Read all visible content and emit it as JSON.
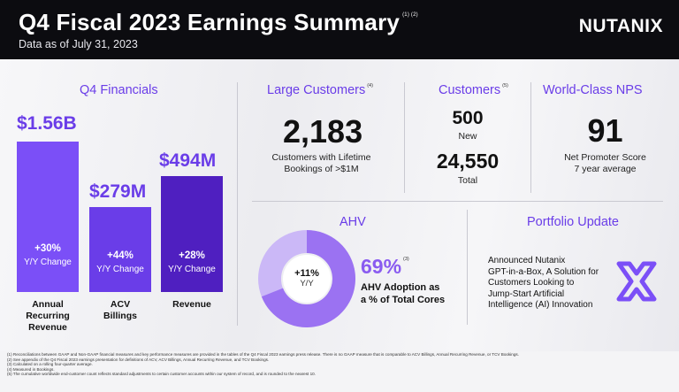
{
  "header": {
    "title": "Q4 Fiscal 2023 Earnings Summary",
    "title_note": "(1) (2)",
    "subtitle": "Data as of July 31, 2023",
    "logo": "NUTANIX"
  },
  "financials": {
    "title": "Q4 Financials",
    "bars": [
      {
        "value": "$1.56B",
        "change": "+30%",
        "change_label": "Y/Y Change",
        "label_lines": [
          "Annual",
          "Recurring",
          "Revenue"
        ],
        "color": "#7b4ff7"
      },
      {
        "value": "$279M",
        "change": "+44%",
        "change_label": "Y/Y Change",
        "label_lines": [
          "ACV",
          "Billings"
        ],
        "color": "#6a3de8"
      },
      {
        "value": "$494M",
        "change": "+28%",
        "change_label": "Y/Y Change",
        "label_lines": [
          "Revenue"
        ],
        "color": "#4f1fc0"
      }
    ]
  },
  "large_customers": {
    "title": "Large Customers",
    "title_note": "(4)",
    "number": "2,183",
    "caption_lines": [
      "Customers with Lifetime",
      "Bookings of >$1M"
    ]
  },
  "customers": {
    "title": "Customers",
    "title_note": "(5)",
    "new_number": "500",
    "new_label": "New",
    "total_number": "24,550",
    "total_label": "Total"
  },
  "nps": {
    "title": "World-Class NPS",
    "number": "91",
    "caption_lines": [
      "Net Promoter Score",
      "7 year average"
    ]
  },
  "ahv": {
    "title": "AHV",
    "donut_change": "+11%",
    "donut_label": "Y/Y",
    "percent": "69%",
    "percent_note": "(3)",
    "adoption_fraction": 0.69,
    "caption_lines": [
      "AHV Adoption as",
      "a % of Total Cores"
    ],
    "colors": {
      "filled": "#9b72f2",
      "empty": "#cbb8f7"
    }
  },
  "portfolio": {
    "title": "Portfolio Update",
    "lines": [
      "Announced Nutanix",
      "GPT-in-a-Box, A Solution for",
      "Customers Looking to",
      "Jump-Start Artificial",
      "Intelligence (AI) Innovation"
    ],
    "icon": "x-logo-icon"
  },
  "footnotes": [
    "(1) Reconciliations between GAAP and Non-GAAP financial measures and key performance measures are provided in the tables of the Q4 Fiscal 2023 earnings press release. There is no GAAP measure that is comparable to ACV Billings, Annual Recurring Revenue, or TCV Bookings.",
    "(2) See appendix of the Q4 Fiscal 2023 earnings presentation for definitions of ACV, ACV Billings, Annual Recurring Revenue, and TCV Bookings.",
    "(3) Calculated on a rolling four-quarter average.",
    "(4) Measured in Bookings.",
    "(5) The cumulative worldwide end-customer count reflects standard adjustments to certain customer accounts within our system of record, and is rounded to the nearest 10."
  ]
}
